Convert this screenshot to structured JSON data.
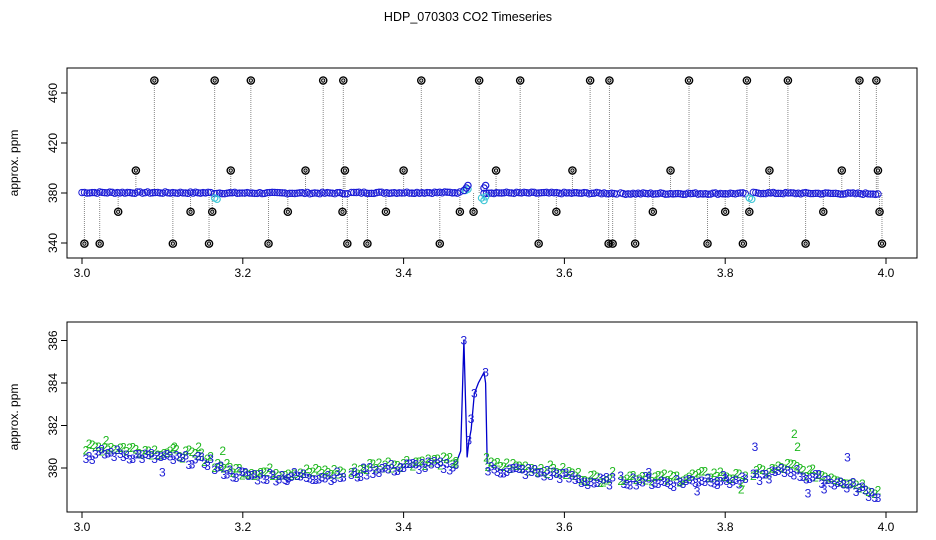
{
  "title": "HDP_070303  CO2 Timeseries",
  "colors": {
    "outlier": "#000000",
    "raw_line": "#888888",
    "main_points": "#1a1ad6",
    "flagged_points": "#3fc6d6",
    "series_2": "#1fb81f",
    "series_3": "#1a1ad6",
    "series_3_line": "#0000cc"
  },
  "chart_data": [
    {
      "type": "scatter",
      "title": "",
      "xlabel": "",
      "ylabel": "approx. ppm",
      "xlim": [
        3.0,
        4.0
      ],
      "ylim": [
        336,
        472
      ],
      "x_ticks": [
        "3.0",
        "3.2",
        "3.4",
        "3.6",
        "3.8",
        "4.0"
      ],
      "y_ticks": [
        "340",
        "380",
        "420",
        "460"
      ],
      "grid": false,
      "baseline_segments": [
        {
          "x": [
            3.0,
            3.16
          ],
          "y": [
            380.4,
            380.2
          ]
        },
        {
          "x": [
            3.165,
            3.33
          ],
          "y": [
            380.0,
            379.9
          ]
        },
        {
          "x": [
            3.335,
            3.47
          ],
          "y": [
            380.2,
            380.4
          ]
        },
        {
          "x": [
            3.5,
            3.665
          ],
          "y": [
            380.2,
            379.8
          ]
        },
        {
          "x": [
            3.67,
            3.825
          ],
          "y": [
            379.5,
            379.6
          ]
        },
        {
          "x": [
            3.835,
            3.99
          ],
          "y": [
            380.0,
            379.4
          ]
        }
      ],
      "series": [
        {
          "name": "",
          "marker": "open-circle",
          "x": [
            3.003,
            3.022,
            3.045,
            3.067,
            3.09,
            3.113,
            3.135,
            3.158,
            3.162,
            3.165,
            3.185,
            3.21,
            3.232,
            3.256,
            3.278,
            3.3,
            3.324,
            3.325,
            3.327,
            3.33,
            3.355,
            3.378,
            3.4,
            3.422,
            3.445,
            3.47,
            3.487,
            3.494,
            3.515,
            3.545,
            3.568,
            3.59,
            3.61,
            3.632,
            3.655,
            3.656,
            3.66,
            3.688,
            3.71,
            3.732,
            3.755,
            3.778,
            3.8,
            3.822,
            3.827,
            3.83,
            3.855,
            3.878,
            3.9,
            3.922,
            3.945,
            3.967,
            3.988,
            3.99,
            3.992,
            3.995
          ],
          "y": [
            339.5,
            339.5,
            365,
            398,
            470,
            339.5,
            365,
            339.5,
            365,
            470,
            398,
            470,
            339.5,
            365,
            398,
            470,
            365,
            470,
            398,
            339.5,
            339.5,
            365,
            398,
            470,
            339.5,
            365,
            365,
            470,
            398,
            470,
            339.5,
            365,
            398,
            470,
            339.5,
            470,
            339.5,
            339.5,
            365,
            398,
            470,
            339.5,
            365,
            339.5,
            470,
            365,
            398,
            470,
            339.5,
            365,
            398,
            470,
            470,
            398,
            365,
            339.5
          ]
        },
        {
          "name": "",
          "marker": "open-circle",
          "x": [
            3.165,
            3.168,
            3.477,
            3.48,
            3.497,
            3.5,
            3.502,
            3.83,
            3.833
          ],
          "y": [
            376,
            375,
            382,
            383,
            376,
            374,
            377,
            376,
            375
          ]
        },
        {
          "name": "",
          "marker": "open-circle",
          "x": [
            3.475,
            3.478,
            3.48,
            3.5,
            3.502
          ],
          "y": [
            382,
            384,
            386,
            384,
            386
          ]
        }
      ]
    },
    {
      "type": "scatter",
      "title": "",
      "xlabel": "",
      "ylabel": "approx. ppm",
      "xlim": [
        3.0,
        4.0
      ],
      "ylim": [
        378.4,
        386.4
      ],
      "x_ticks": [
        "3.0",
        "3.2",
        "3.4",
        "3.6",
        "3.8",
        "4.0"
      ],
      "y_ticks": [
        "380",
        "382",
        "384",
        "386"
      ],
      "grid": false,
      "spike_series": {
        "name": "",
        "x": [
          3.466,
          3.471,
          3.475,
          3.477,
          3.479,
          3.481,
          3.484,
          3.488,
          3.493,
          3.5,
          3.502,
          3.504
        ],
        "y": [
          380.3,
          380.8,
          386.0,
          383.2,
          380.5,
          381.2,
          381.8,
          383.5,
          384.0,
          384.5,
          384.0,
          380.2
        ]
      },
      "annotation_points": [
        {
          "x": 3.475,
          "y": 386.0,
          "label": "3"
        },
        {
          "x": 3.502,
          "y": 384.5,
          "label": "3"
        },
        {
          "x": 3.488,
          "y": 383.5,
          "label": "3"
        },
        {
          "x": 3.484,
          "y": 382.3,
          "label": "3"
        },
        {
          "x": 3.481,
          "y": 381.3,
          "label": "3"
        },
        {
          "x": 3.837,
          "y": 381.0,
          "label": "3"
        },
        {
          "x": 3.952,
          "y": 380.5,
          "label": "3"
        },
        {
          "x": 3.886,
          "y": 381.6,
          "label": "2"
        },
        {
          "x": 3.89,
          "y": 381.0,
          "label": "2"
        },
        {
          "x": 3.03,
          "y": 381.3,
          "label": "2"
        },
        {
          "x": 3.115,
          "y": 381.0,
          "label": "2"
        },
        {
          "x": 3.145,
          "y": 381.0,
          "label": "2"
        },
        {
          "x": 3.175,
          "y": 380.8,
          "label": "2"
        },
        {
          "x": 3.503,
          "y": 380.5,
          "label": "2"
        },
        {
          "x": 3.465,
          "y": 380.3,
          "label": "2"
        },
        {
          "x": 3.1,
          "y": 379.8,
          "label": "3"
        },
        {
          "x": 3.255,
          "y": 379.4,
          "label": "3"
        },
        {
          "x": 3.705,
          "y": 379.8,
          "label": "3"
        },
        {
          "x": 3.765,
          "y": 378.9,
          "label": "3"
        },
        {
          "x": 3.79,
          "y": 379.2,
          "label": "3"
        },
        {
          "x": 3.903,
          "y": 378.8,
          "label": "3"
        },
        {
          "x": 3.923,
          "y": 379.0,
          "label": "3"
        },
        {
          "x": 3.82,
          "y": 379.0,
          "label": "2"
        },
        {
          "x": 3.8,
          "y": 379.5,
          "label": "3"
        }
      ],
      "series": [
        {
          "name": "",
          "marker": "2",
          "segments": [
            {
              "x": [
                3.005,
                3.03,
                3.06,
                3.09,
                3.12,
                3.15,
                3.16
              ],
              "y": [
                380.9,
                381.0,
                380.9,
                380.8,
                380.7,
                380.5,
                380.5
              ]
            },
            {
              "x": [
                3.165,
                3.19,
                3.22,
                3.25,
                3.28,
                3.31,
                3.325
              ],
              "y": [
                380.2,
                379.9,
                379.8,
                379.8,
                379.8,
                379.8,
                379.8
              ]
            },
            {
              "x": [
                3.335,
                3.36,
                3.39,
                3.42,
                3.45,
                3.465
              ],
              "y": [
                379.8,
                380.1,
                380.2,
                380.3,
                380.3,
                380.3
              ]
            },
            {
              "x": [
                3.505,
                3.53,
                3.56,
                3.59,
                3.62,
                3.64,
                3.66
              ],
              "y": [
                380.1,
                380.1,
                380.0,
                379.9,
                379.6,
                379.5,
                379.6
              ]
            },
            {
              "x": [
                3.67,
                3.7,
                3.73,
                3.76,
                3.79,
                3.82,
                3.825
              ],
              "y": [
                379.6,
                379.6,
                379.5,
                379.6,
                379.7,
                379.5,
                379.7
              ]
            },
            {
              "x": [
                3.835,
                3.86,
                3.88,
                3.9,
                3.93,
                3.96,
                3.99
              ],
              "y": [
                379.7,
                379.9,
                380.1,
                379.8,
                379.6,
                379.3,
                378.9
              ]
            }
          ]
        },
        {
          "name": "",
          "marker": "3",
          "segments": [
            {
              "x": [
                3.005,
                3.03,
                3.06,
                3.09,
                3.12,
                3.15,
                3.16
              ],
              "y": [
                380.5,
                380.7,
                380.6,
                380.5,
                380.4,
                380.3,
                380.3
              ]
            },
            {
              "x": [
                3.165,
                3.19,
                3.22,
                3.25,
                3.28,
                3.31,
                3.325
              ],
              "y": [
                380.0,
                379.7,
                379.6,
                379.6,
                379.6,
                379.6,
                379.6
              ]
            },
            {
              "x": [
                3.335,
                3.36,
                3.39,
                3.42,
                3.45,
                3.465
              ],
              "y": [
                379.6,
                379.9,
                380.0,
                380.1,
                380.1,
                380.1
              ]
            },
            {
              "x": [
                3.505,
                3.53,
                3.56,
                3.59,
                3.62,
                3.64,
                3.66
              ],
              "y": [
                379.9,
                379.9,
                379.8,
                379.7,
                379.4,
                379.3,
                379.4
              ]
            },
            {
              "x": [
                3.67,
                3.7,
                3.73,
                3.76,
                3.79,
                3.82,
                3.825
              ],
              "y": [
                379.4,
                379.4,
                379.3,
                379.4,
                379.5,
                379.3,
                379.5
              ]
            },
            {
              "x": [
                3.835,
                3.86,
                3.88,
                3.9,
                3.93,
                3.96,
                3.99
              ],
              "y": [
                379.5,
                379.7,
                379.9,
                379.6,
                379.4,
                379.1,
                378.7
              ]
            }
          ]
        }
      ]
    }
  ]
}
